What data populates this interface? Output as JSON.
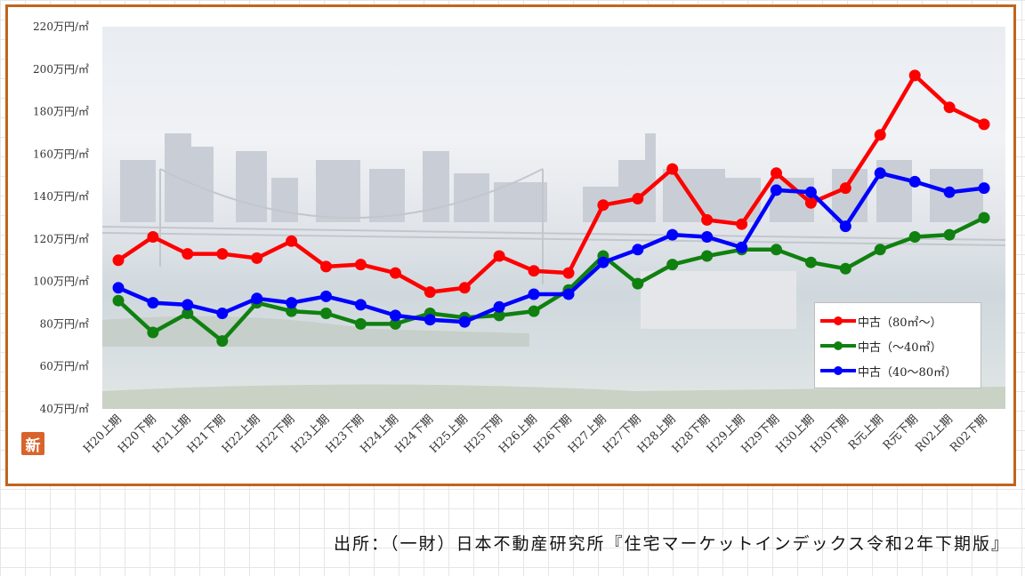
{
  "chart_data": {
    "type": "line",
    "title": "",
    "xlabel": "",
    "ylabel": "",
    "ylim": [
      40,
      220
    ],
    "y_ticks": [
      "40万円/㎡",
      "60万円/㎡",
      "80万円/㎡",
      "100万円/㎡",
      "120万円/㎡",
      "140万円/㎡",
      "160万円/㎡",
      "180万円/㎡",
      "200万円/㎡",
      "220万円/㎡"
    ],
    "y_tick_values": [
      40,
      60,
      80,
      100,
      120,
      140,
      160,
      180,
      200,
      220
    ],
    "categories": [
      "H20上期",
      "H20下期",
      "H21上期",
      "H21下期",
      "H22上期",
      "H22下期",
      "H23上期",
      "H23下期",
      "H24上期",
      "H24下期",
      "H25上期",
      "H25下期",
      "H26上期",
      "H26下期",
      "H27上期",
      "H27下期",
      "H28上期",
      "H28下期",
      "H29上期",
      "H29下期",
      "H30上期",
      "H30下期",
      "R元上期",
      "R元下期",
      "R02上期",
      "R02下期"
    ],
    "grid": false,
    "legend_position": "bottom-right",
    "series": [
      {
        "name": "中古（80㎡～）",
        "color": "#ff0000",
        "values": [
          110,
          121,
          113,
          113,
          111,
          119,
          107,
          108,
          104,
          95,
          97,
          112,
          105,
          104,
          136,
          139,
          153,
          129,
          127,
          151,
          137,
          144,
          169,
          197,
          182,
          174
        ]
      },
      {
        "name": "中古（～40㎡）",
        "color": "#108010",
        "values": [
          91,
          76,
          85,
          72,
          90,
          86,
          85,
          80,
          80,
          85,
          83,
          84,
          86,
          96,
          112,
          99,
          108,
          112,
          115,
          115,
          109,
          106,
          115,
          121,
          122,
          130
        ]
      },
      {
        "name": "中古（40～80㎡）",
        "color": "#0000ff",
        "values": [
          97,
          90,
          89,
          85,
          92,
          90,
          93,
          89,
          84,
          82,
          81,
          88,
          94,
          94,
          109,
          115,
          122,
          121,
          116,
          143,
          142,
          126,
          151,
          147,
          142,
          144
        ]
      }
    ]
  },
  "logo": {
    "glyph": "新"
  },
  "source": {
    "text": "出所：（一財）日本不動産研究所『住宅マーケットインデックス令和2年下期版』"
  }
}
